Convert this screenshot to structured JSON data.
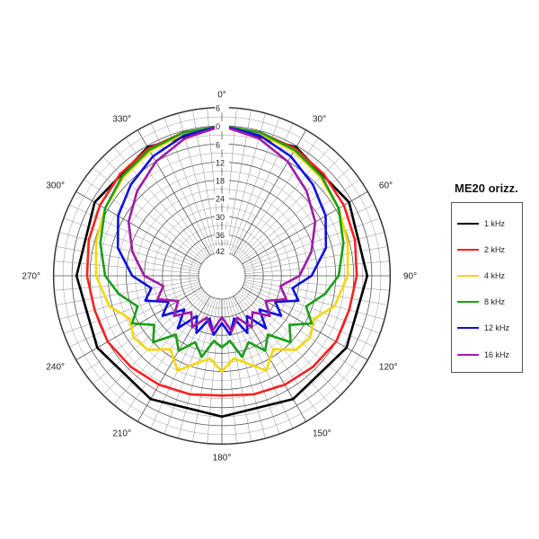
{
  "chart_data": {
    "type": "polar-line",
    "title": "ME20 orizz.",
    "angle_labels": [
      "0°",
      "30°",
      "60°",
      "90°",
      "120°",
      "150°",
      "180°",
      "210°",
      "240°",
      "270°",
      "300°",
      "330°"
    ],
    "radial_tick_labels": [
      "6",
      "0",
      "6",
      "12",
      "18",
      "24",
      "30",
      "36",
      "42"
    ],
    "radial_range": [
      -42,
      6
    ],
    "grid": true,
    "legend_position": "right",
    "series": [
      {
        "name": "1 kHz",
        "color": "#000000",
        "angles": [
          0,
          30,
          60,
          90,
          120,
          150,
          180
        ],
        "values": [
          0,
          -0.5,
          -1,
          -1.5,
          -2,
          -2.5,
          -3
        ]
      },
      {
        "name": "2 kHz",
        "color": "#ff2020",
        "angles": [
          0,
          15,
          30,
          45,
          60,
          75,
          90,
          105,
          120,
          135,
          150,
          165,
          180
        ],
        "values": [
          0,
          -0.5,
          -1,
          -2,
          -3,
          -4,
          -5,
          -6,
          -6,
          -7,
          -8,
          -9,
          -10
        ]
      },
      {
        "name": "4 kHz",
        "color": "#f5d800",
        "angles": [
          0,
          15,
          30,
          45,
          60,
          75,
          90,
          105,
          115,
          125,
          135,
          145,
          155,
          165,
          172,
          180
        ],
        "values": [
          0,
          -1,
          -2,
          -3.5,
          -5,
          -6.5,
          -8,
          -11,
          -16,
          -14,
          -15,
          -20,
          -15,
          -20,
          -22,
          -18
        ]
      },
      {
        "name": "8 kHz",
        "color": "#18a018",
        "angles": [
          0,
          15,
          30,
          45,
          60,
          75,
          90,
          100,
          110,
          118,
          126,
          134,
          142,
          150,
          158,
          166,
          173,
          180
        ],
        "values": [
          0,
          -0.5,
          -1.5,
          -3,
          -5,
          -8,
          -11,
          -15,
          -20,
          -16,
          -22,
          -18,
          -25,
          -21,
          -26,
          -22,
          -28,
          -26
        ]
      },
      {
        "name": "12 kHz",
        "color": "#1010e0",
        "angles": [
          0,
          15,
          30,
          45,
          60,
          75,
          90,
          100,
          108,
          116,
          124,
          132,
          140,
          148,
          156,
          164,
          172,
          180
        ],
        "values": [
          0,
          -1.5,
          -4,
          -7,
          -10,
          -14,
          -20,
          -26,
          -23,
          -30,
          -26,
          -33,
          -27,
          -34,
          -29,
          -35,
          -30,
          -34
        ]
      },
      {
        "name": "16 kHz",
        "color": "#a01aa8",
        "angles": [
          0,
          15,
          30,
          45,
          60,
          75,
          90,
          100,
          110,
          120,
          130,
          140,
          150,
          160,
          170,
          180
        ],
        "values": [
          0,
          -2.5,
          -6,
          -10,
          -14,
          -19,
          -24,
          -30,
          -27,
          -33,
          -29,
          -34,
          -30,
          -35,
          -31,
          -36
        ]
      }
    ]
  }
}
